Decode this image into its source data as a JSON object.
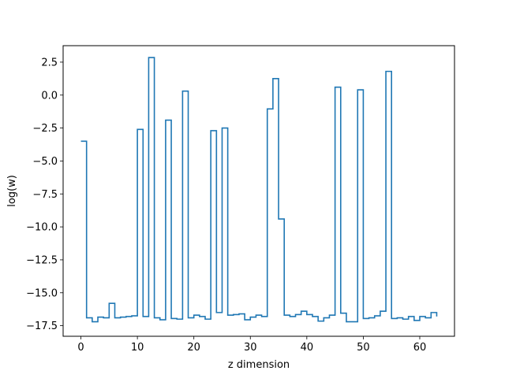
{
  "chart_data": {
    "type": "line",
    "drawstyle": "steps-post",
    "title": "",
    "xlabel": "z dimension",
    "ylabel": "log(w)",
    "xlim": [
      -3.15,
      66.15
    ],
    "ylim": [
      -18.3,
      3.75
    ],
    "xticks": [
      0,
      10,
      20,
      30,
      40,
      50,
      60
    ],
    "xtick_labels": [
      "0",
      "10",
      "20",
      "30",
      "40",
      "50",
      "60"
    ],
    "yticks": [
      2.5,
      0.0,
      -2.5,
      -5.0,
      -7.5,
      -10.0,
      -12.5,
      -15.0,
      -17.5
    ],
    "ytick_labels": [
      "2.5",
      "0.0",
      "−2.5",
      "−5.0",
      "−7.5",
      "−10.0",
      "−12.5",
      "−15.0",
      "−17.5"
    ],
    "grid": false,
    "legend": "none",
    "line_color": "#1f77b4",
    "series": [
      {
        "x": [
          0,
          1,
          2,
          3,
          4,
          5,
          6,
          7,
          8,
          9,
          10,
          11,
          12,
          13,
          14,
          15,
          16,
          17,
          18,
          19,
          20,
          21,
          22,
          23,
          24,
          25,
          26,
          27,
          28,
          29,
          30,
          31,
          32,
          33,
          34,
          35,
          36,
          37,
          38,
          39,
          40,
          41,
          42,
          43,
          44,
          45,
          46,
          47,
          48,
          49,
          50,
          51,
          52,
          53,
          54,
          55,
          56,
          57,
          58,
          59,
          60,
          61,
          62,
          63
        ],
        "values": [
          -3.5,
          -16.9,
          -17.2,
          -16.85,
          -16.9,
          -15.8,
          -16.9,
          -16.85,
          -16.8,
          -16.75,
          -2.6,
          -16.8,
          2.85,
          -16.9,
          -17.05,
          -1.9,
          -16.95,
          -17.0,
          0.3,
          -16.9,
          -16.7,
          -16.8,
          -17.0,
          -2.7,
          -16.5,
          -2.5,
          -16.7,
          -16.65,
          -16.6,
          -17.05,
          -16.85,
          -16.7,
          -16.8,
          -1.05,
          1.25,
          -9.4,
          -16.7,
          -16.8,
          -16.65,
          -16.4,
          -16.65,
          -16.8,
          -17.15,
          -16.9,
          -16.7,
          0.6,
          -16.55,
          -17.2,
          -17.2,
          0.4,
          -16.95,
          -16.9,
          -16.75,
          -16.4,
          1.8,
          -16.95,
          -16.9,
          -17.0,
          -16.8,
          -17.1,
          -16.8,
          -16.9,
          -16.5,
          -16.8
        ]
      }
    ]
  }
}
